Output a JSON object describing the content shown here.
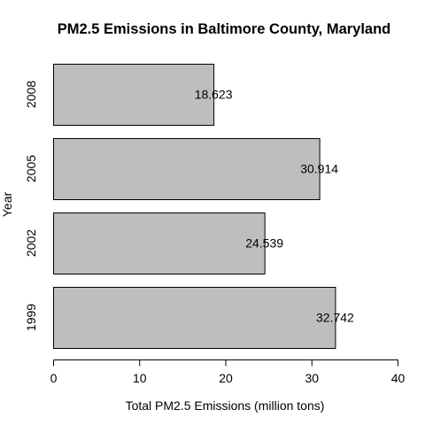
{
  "chart_data": {
    "type": "bar",
    "orientation": "horizontal",
    "title": "PM2.5 Emissions in Baltimore County, Maryland",
    "xlabel": "Total PM2.5 Emissions (million tons)",
    "ylabel": "Year",
    "xlim": [
      0,
      40
    ],
    "x_ticks": [
      0,
      10,
      20,
      30,
      40
    ],
    "categories": [
      "1999",
      "2002",
      "2005",
      "2008"
    ],
    "values": [
      32.742,
      24.539,
      30.914,
      18.623
    ],
    "data_labels": [
      "32.742",
      "24.539",
      "30.914",
      "18.623"
    ],
    "bar_color": "#bebebe",
    "grid": false,
    "legend": "none"
  }
}
